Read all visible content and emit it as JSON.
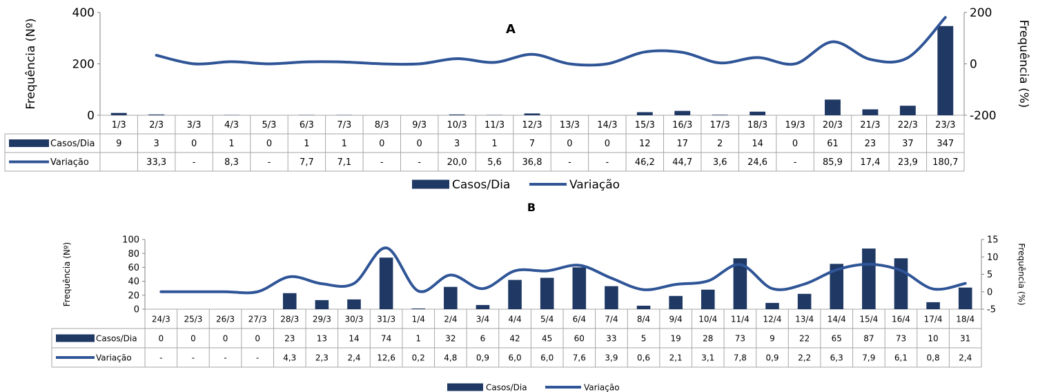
{
  "chart_data": [
    {
      "type": "bar",
      "title": "A",
      "ylabel": "Frequência (Nº)",
      "y2label": "Frequência (%)",
      "ylim": [
        0,
        400
      ],
      "yticks": [
        0,
        200,
        400
      ],
      "y2lim": [
        -200,
        200
      ],
      "y2ticks": [
        -200,
        0,
        200
      ],
      "categories": [
        "1/3",
        "2/3",
        "3/3",
        "4/3",
        "5/3",
        "6/3",
        "7/3",
        "8/3",
        "9/3",
        "10/3",
        "11/3",
        "12/3",
        "13/3",
        "14/3",
        "15/3",
        "16/3",
        "17/3",
        "18/3",
        "19/3",
        "20/3",
        "21/3",
        "22/3",
        "23/3"
      ],
      "series": [
        {
          "name": "Casos/Dia",
          "kind": "bar",
          "axis": "left",
          "color": "#1f3864",
          "values": [
            9,
            3,
            0,
            1,
            0,
            1,
            1,
            0,
            0,
            3,
            1,
            7,
            0,
            0,
            12,
            17,
            2,
            14,
            0,
            61,
            23,
            37,
            347
          ],
          "labels": [
            "9",
            "3",
            "0",
            "1",
            "0",
            "1",
            "1",
            "0",
            "0",
            "3",
            "1",
            "7",
            "0",
            "0",
            "12",
            "17",
            "2",
            "14",
            "0",
            "61",
            "23",
            "37",
            "347"
          ]
        },
        {
          "name": "Variação",
          "kind": "line",
          "axis": "right",
          "color": "#2f5597",
          "values": [
            null,
            33.3,
            0,
            8.3,
            0,
            7.7,
            7.1,
            0,
            0,
            20.0,
            5.6,
            36.8,
            0,
            0,
            46.2,
            44.7,
            3.6,
            24.6,
            0,
            85.9,
            17.4,
            23.9,
            180.7
          ],
          "labels": [
            "",
            "33,3",
            "-",
            "8,3",
            "-",
            "7,7",
            "7,1",
            "-",
            "-",
            "20,0",
            "5,6",
            "36,8",
            "-",
            "-",
            "46,2",
            "44,7",
            "3,6",
            "24,6",
            "-",
            "85,9",
            "17,4",
            "23,9",
            "180,7"
          ]
        }
      ],
      "legend": "bottom"
    },
    {
      "type": "bar",
      "title": "B",
      "ylabel": "Frequência (Nº)",
      "y2label": "Frequência (%)",
      "ylim": [
        0,
        100
      ],
      "yticks": [
        0,
        20,
        40,
        60,
        80,
        100
      ],
      "y2lim": [
        -5,
        15
      ],
      "y2ticks": [
        -5,
        0,
        5,
        10,
        15
      ],
      "categories": [
        "24/3",
        "25/3",
        "26/3",
        "27/3",
        "28/3",
        "29/3",
        "30/3",
        "31/3",
        "1/4",
        "2/4",
        "3/4",
        "4/4",
        "5/4",
        "6/4",
        "7/4",
        "8/4",
        "9/4",
        "10/4",
        "11/4",
        "12/4",
        "13/4",
        "14/4",
        "15/4",
        "16/4",
        "17/4",
        "18/4"
      ],
      "series": [
        {
          "name": "Casos/Dia",
          "kind": "bar",
          "axis": "left",
          "color": "#1f3864",
          "values": [
            0,
            0,
            0,
            0,
            23,
            13,
            14,
            74,
            1,
            32,
            6,
            42,
            45,
            60,
            33,
            5,
            19,
            28,
            73,
            9,
            22,
            65,
            87,
            73,
            10,
            31
          ],
          "labels": [
            "0",
            "0",
            "0",
            "0",
            "23",
            "13",
            "14",
            "74",
            "1",
            "32",
            "6",
            "42",
            "45",
            "60",
            "33",
            "5",
            "19",
            "28",
            "73",
            "9",
            "22",
            "65",
            "87",
            "73",
            "10",
            "31"
          ]
        },
        {
          "name": "Variação",
          "kind": "line",
          "axis": "right",
          "color": "#2f5597",
          "values": [
            0,
            0,
            0,
            0,
            4.3,
            2.3,
            2.4,
            12.6,
            0.2,
            4.8,
            0.9,
            6.0,
            6.0,
            7.6,
            3.9,
            0.6,
            2.1,
            3.1,
            7.8,
            0.9,
            2.2,
            6.3,
            7.9,
            6.1,
            0.8,
            2.4
          ],
          "labels": [
            "-",
            "-",
            "-",
            "-",
            "4,3",
            "2,3",
            "2,4",
            "12,6",
            "0,2",
            "4,8",
            "0,9",
            "6,0",
            "6,0",
            "7,6",
            "3,9",
            "0,6",
            "2,1",
            "3,1",
            "7,8",
            "0,9",
            "2,2",
            "6,3",
            "7,9",
            "6,1",
            "0,8",
            "2,4"
          ]
        }
      ],
      "legend": "bottom"
    }
  ]
}
